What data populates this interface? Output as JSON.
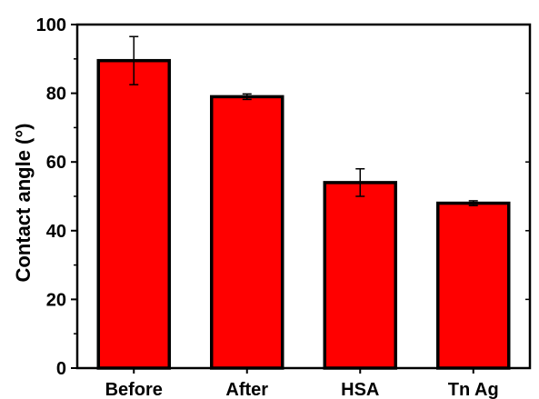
{
  "chart_data": {
    "type": "bar",
    "title": "",
    "xlabel": "",
    "ylabel": "Contact angle (°)",
    "categories": [
      "Before",
      "After",
      "HSA",
      "Tn Ag"
    ],
    "values": [
      89.5,
      79,
      54,
      48
    ],
    "error_bars": [
      7,
      0.8,
      4,
      0.7
    ],
    "ylim": [
      0,
      100
    ],
    "yticks": [
      0,
      20,
      40,
      60,
      80,
      100
    ],
    "grid": false,
    "legend": "none",
    "colors": {
      "bar_fill": "#ff0000",
      "bar_stroke": "#000000",
      "axis": "#000000"
    }
  }
}
